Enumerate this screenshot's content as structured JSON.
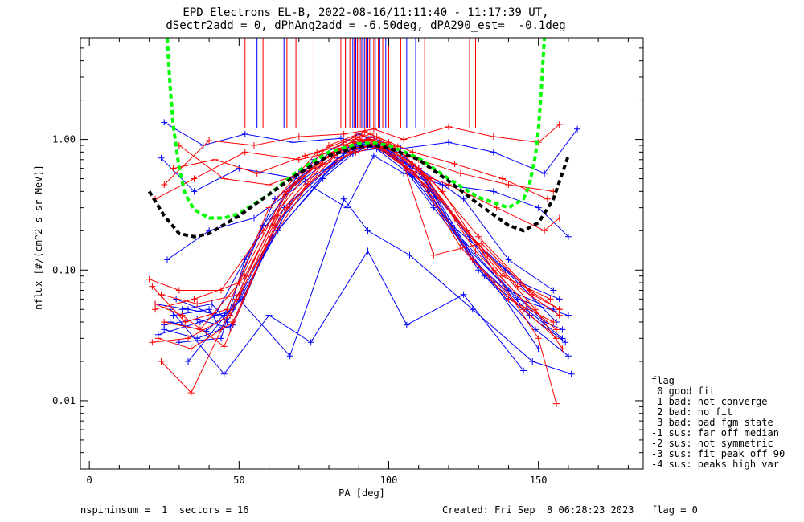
{
  "chart_data": {
    "type": "line",
    "title_line1": "EPD Electrons EL-B, 2022-08-16/11:11:40 - 11:17:39 UT,",
    "title_line2": "dSectr2add = 0, dPhAng2add = -6.50deg, dPA290_est=  -0.1deg",
    "xlabel": "PA [deg]",
    "ylabel": "nflux [#/(cm^2 s sr MeV)]",
    "xlim": [
      -3,
      185
    ],
    "ylim": [
      0.003,
      6.0
    ],
    "yscale": "log",
    "xticks": [
      0,
      50,
      100,
      150
    ],
    "xtick_labels": [
      "0",
      "50",
      "100",
      "150"
    ],
    "yticks": [
      0.01,
      0.1,
      1.0
    ],
    "ytick_labels": [
      "0.01",
      "0.10",
      "1.00"
    ],
    "colors": {
      "red": "#ff0000",
      "blue": "#0000ff",
      "green": "#00ff00",
      "black": "#000000"
    },
    "series": [
      {
        "color": "#0000ff",
        "marker": "+",
        "x": [
          22,
          33,
          45,
          62,
          80,
          90,
          95,
          108,
          126,
          143,
          160
        ],
        "y": [
          0.055,
          0.05,
          0.045,
          0.35,
          0.78,
          0.92,
          0.88,
          0.52,
          0.15,
          0.06,
          0.045
        ]
      },
      {
        "color": "#0000ff",
        "marker": "+",
        "x": [
          25,
          36,
          48,
          65,
          83,
          92,
          98,
          112,
          128,
          146,
          158
        ],
        "y": [
          0.035,
          0.03,
          0.038,
          0.3,
          0.72,
          0.95,
          0.82,
          0.48,
          0.12,
          0.05,
          0.03
        ]
      },
      {
        "color": "#0000ff",
        "marker": "+",
        "x": [
          28,
          40,
          44,
          66,
          85,
          94,
          100,
          110,
          122,
          140,
          155
        ],
        "y": [
          0.045,
          0.05,
          0.035,
          0.4,
          0.85,
          1.05,
          0.9,
          0.6,
          0.2,
          0.07,
          0.05
        ]
      },
      {
        "color": "#0000ff",
        "marker": "+",
        "x": [
          30,
          44,
          52,
          70,
          86,
          94,
          103,
          115,
          135,
          150
        ],
        "y": [
          0.028,
          0.03,
          0.12,
          0.55,
          0.9,
          0.92,
          0.7,
          0.3,
          0.08,
          0.025
        ]
      },
      {
        "color": "#0000ff",
        "marker": "+",
        "x": [
          27,
          45,
          60,
          74,
          93,
          106,
          125,
          145
        ],
        "y": [
          0.05,
          0.016,
          0.045,
          0.028,
          0.14,
          0.038,
          0.065,
          0.017
        ]
      },
      {
        "color": "#0000ff",
        "marker": "+",
        "x": [
          33,
          50,
          67,
          85,
          93,
          107,
          128,
          148,
          161
        ],
        "y": [
          0.02,
          0.06,
          0.022,
          0.35,
          0.2,
          0.13,
          0.05,
          0.02,
          0.016
        ]
      },
      {
        "color": "#0000ff",
        "marker": "+",
        "x": [
          25,
          38,
          52,
          68,
          84,
          93,
          104,
          120,
          135,
          152,
          163
        ],
        "y": [
          1.35,
          0.9,
          1.1,
          0.95,
          1.02,
          0.9,
          0.85,
          0.95,
          0.8,
          0.55,
          1.2
        ]
      },
      {
        "color": "#0000ff",
        "marker": "+",
        "x": [
          24,
          35,
          50,
          70,
          86,
          95,
          105,
          118,
          135,
          150,
          160
        ],
        "y": [
          0.72,
          0.4,
          0.6,
          0.5,
          0.3,
          0.75,
          0.55,
          0.45,
          0.4,
          0.3,
          0.18
        ]
      },
      {
        "color": "#0000ff",
        "marker": "+",
        "x": [
          26,
          40,
          55,
          72,
          88,
          96,
          110,
          125,
          140,
          155
        ],
        "y": [
          0.12,
          0.2,
          0.25,
          0.48,
          0.8,
          0.85,
          0.6,
          0.35,
          0.12,
          0.07
        ]
      },
      {
        "color": "#0000ff",
        "marker": "+",
        "x": [
          29,
          42,
          58,
          75,
          90,
          97,
          108,
          122,
          138,
          152,
          158
        ],
        "y": [
          0.06,
          0.045,
          0.22,
          0.7,
          1.1,
          0.92,
          0.62,
          0.25,
          0.08,
          0.04,
          0.035
        ]
      },
      {
        "color": "#0000ff",
        "marker": "+",
        "x": [
          23,
          37,
          48,
          64,
          82,
          91,
          99,
          113,
          130,
          147,
          159
        ],
        "y": [
          0.032,
          0.04,
          0.05,
          0.25,
          0.65,
          0.88,
          0.85,
          0.4,
          0.1,
          0.045,
          0.028
        ]
      },
      {
        "color": "#0000ff",
        "marker": "+",
        "x": [
          27,
          39,
          51,
          67,
          85,
          93,
          101,
          116,
          132,
          149,
          160
        ],
        "y": [
          0.04,
          0.034,
          0.06,
          0.32,
          0.78,
          1.0,
          0.8,
          0.36,
          0.09,
          0.035,
          0.022
        ]
      },
      {
        "color": "#0000ff",
        "marker": "+",
        "x": [
          31,
          41,
          46,
          63,
          79,
          89,
          96,
          111,
          127,
          144,
          157
        ],
        "y": [
          0.05,
          0.055,
          0.04,
          0.2,
          0.55,
          0.85,
          0.9,
          0.55,
          0.18,
          0.08,
          0.06
        ]
      },
      {
        "color": "#0000ff",
        "marker": "+",
        "x": [
          25,
          36,
          47,
          61,
          78,
          88,
          95,
          107,
          121,
          139,
          156
        ],
        "y": [
          0.038,
          0.042,
          0.036,
          0.18,
          0.5,
          0.78,
          0.93,
          0.62,
          0.22,
          0.1,
          0.04
        ]
      },
      {
        "color": "#ff0000",
        "marker": "+",
        "x": [
          21,
          32,
          46,
          60,
          76,
          89,
          96,
          109,
          124,
          140,
          155
        ],
        "y": [
          0.075,
          0.04,
          0.05,
          0.3,
          0.8,
          1.05,
          0.9,
          0.55,
          0.15,
          0.06,
          0.04
        ]
      },
      {
        "color": "#ff0000",
        "marker": "+",
        "x": [
          23,
          34,
          48,
          62,
          78,
          90,
          98,
          112,
          128,
          145,
          156
        ],
        "y": [
          0.03,
          0.025,
          0.04,
          0.22,
          0.65,
          1.0,
          0.85,
          0.45,
          0.12,
          0.05,
          0.03
        ]
      },
      {
        "color": "#ff0000",
        "marker": "+",
        "x": [
          22,
          35,
          50,
          65,
          80,
          92,
          100,
          114,
          130,
          147,
          157
        ],
        "y": [
          0.05,
          0.06,
          0.08,
          0.38,
          0.9,
          1.15,
          0.95,
          0.5,
          0.18,
          0.07,
          0.05
        ]
      },
      {
        "color": "#ff0000",
        "marker": "+",
        "x": [
          24,
          34,
          49,
          66,
          85,
          94,
          104,
          118,
          135,
          150,
          156
        ],
        "y": [
          0.02,
          0.0115,
          0.06,
          0.4,
          0.95,
          1.1,
          0.8,
          0.4,
          0.1,
          0.03,
          0.0095
        ]
      },
      {
        "color": "#ff0000",
        "marker": "+",
        "x": [
          20,
          30,
          44,
          58,
          74,
          86,
          95,
          108,
          122,
          138,
          154
        ],
        "y": [
          0.085,
          0.07,
          0.07,
          0.2,
          0.6,
          0.9,
          1.0,
          0.65,
          0.25,
          0.09,
          0.06
        ]
      },
      {
        "color": "#ff0000",
        "marker": "+",
        "x": [
          22,
          31,
          45,
          59,
          73,
          87,
          97,
          110,
          126,
          143,
          157
        ],
        "y": [
          0.055,
          0.045,
          0.026,
          0.15,
          0.45,
          0.8,
          0.95,
          0.6,
          0.2,
          0.075,
          0.045
        ]
      },
      {
        "color": "#ff0000",
        "marker": "+",
        "x": [
          25,
          37,
          52,
          68,
          83,
          93,
          102,
          117,
          133,
          149,
          158
        ],
        "y": [
          0.04,
          0.035,
          0.09,
          0.45,
          0.85,
          1.0,
          0.75,
          0.35,
          0.13,
          0.05,
          0.025
        ]
      },
      {
        "color": "#ff0000",
        "marker": "+",
        "x": [
          21,
          33,
          47,
          63,
          79,
          91,
          99,
          113,
          129,
          146,
          156
        ],
        "y": [
          0.028,
          0.03,
          0.045,
          0.26,
          0.72,
          1.08,
          0.9,
          0.5,
          0.14,
          0.055,
          0.035
        ]
      },
      {
        "color": "#ff0000",
        "marker": "+",
        "x": [
          22,
          35,
          52,
          70,
          86,
          95,
          106,
          120,
          136,
          152,
          157
        ],
        "y": [
          0.35,
          0.5,
          0.8,
          0.7,
          0.85,
          0.9,
          0.6,
          0.45,
          0.3,
          0.2,
          0.25
        ]
      },
      {
        "color": "#ff0000",
        "marker": "+",
        "x": [
          25,
          40,
          55,
          70,
          85,
          95,
          105,
          120,
          135,
          150,
          157
        ],
        "y": [
          0.45,
          0.98,
          0.9,
          1.05,
          1.1,
          1.2,
          1.0,
          1.25,
          1.05,
          0.95,
          1.3
        ]
      },
      {
        "color": "#ff0000",
        "marker": "+",
        "x": [
          28,
          42,
          56,
          72,
          88,
          96,
          108,
          122,
          138,
          153
        ],
        "y": [
          0.6,
          0.7,
          0.55,
          0.75,
          0.95,
          1.05,
          0.8,
          0.65,
          0.5,
          0.35
        ]
      },
      {
        "color": "#ff0000",
        "marker": "+",
        "x": [
          30,
          45,
          60,
          75,
          89,
          97,
          110,
          124,
          140,
          155
        ],
        "y": [
          0.9,
          0.5,
          0.45,
          0.6,
          0.8,
          0.88,
          0.7,
          0.55,
          0.45,
          0.4
        ]
      },
      {
        "color": "#ff0000",
        "marker": "+",
        "x": [
          24,
          36,
          50,
          66,
          82,
          93,
          103,
          115,
          131,
          148,
          157
        ],
        "y": [
          0.065,
          0.055,
          0.065,
          0.3,
          0.75,
          1.0,
          0.88,
          0.13,
          0.16,
          0.065,
          0.05
        ]
      }
    ],
    "model_curves": [
      {
        "color": "#00ff00",
        "style": "dashed",
        "x": [
          26,
          27,
          28,
          30,
          32,
          35,
          40,
          45,
          50,
          60,
          70,
          80,
          90,
          95,
          100,
          110,
          120,
          130,
          140,
          145,
          147,
          149,
          150,
          151,
          152
        ],
        "y": [
          6.0,
          2.5,
          1.3,
          0.6,
          0.38,
          0.29,
          0.25,
          0.25,
          0.27,
          0.38,
          0.58,
          0.8,
          0.93,
          0.94,
          0.9,
          0.72,
          0.5,
          0.36,
          0.3,
          0.35,
          0.45,
          0.75,
          1.2,
          2.5,
          6.0
        ]
      },
      {
        "color": "#000000",
        "style": "dashed",
        "x": [
          20,
          25,
          30,
          35,
          40,
          50,
          60,
          70,
          80,
          90,
          95,
          100,
          110,
          120,
          130,
          140,
          145,
          150,
          155,
          160
        ],
        "y": [
          0.4,
          0.26,
          0.19,
          0.18,
          0.19,
          0.26,
          0.38,
          0.55,
          0.75,
          0.88,
          0.9,
          0.86,
          0.7,
          0.48,
          0.32,
          0.22,
          0.2,
          0.23,
          0.35,
          0.75
        ]
      }
    ],
    "pa_markers": [
      {
        "color": "#ff0000",
        "x": [
          52,
          58,
          66,
          69,
          75,
          84,
          85.5,
          87,
          88.5,
          89.5,
          90.5,
          91.5,
          92.5,
          93.5,
          95,
          96.5,
          98,
          100,
          104,
          112,
          127,
          129
        ]
      },
      {
        "color": "#0000ff",
        "x": [
          53,
          56,
          65,
          86,
          88,
          89,
          90,
          91,
          92,
          93,
          94,
          95.5,
          97,
          99,
          106,
          109
        ]
      }
    ]
  },
  "legend": {
    "title": "flag",
    "items": [
      " 0 good fit",
      " 1 bad: not converge",
      " 2 bad: no fit",
      " 3 bad: bad fgm state",
      "-1 sus: far off median",
      "-2 sus: not symmetric",
      "-3 sus: fit peak off 90",
      "-4 sus: peaks high var"
    ]
  },
  "footer": {
    "left": "nspininsum =  1  sectors = 16",
    "right": "Created: Fri Sep  8 06:28:23 2023   flag = 0"
  }
}
